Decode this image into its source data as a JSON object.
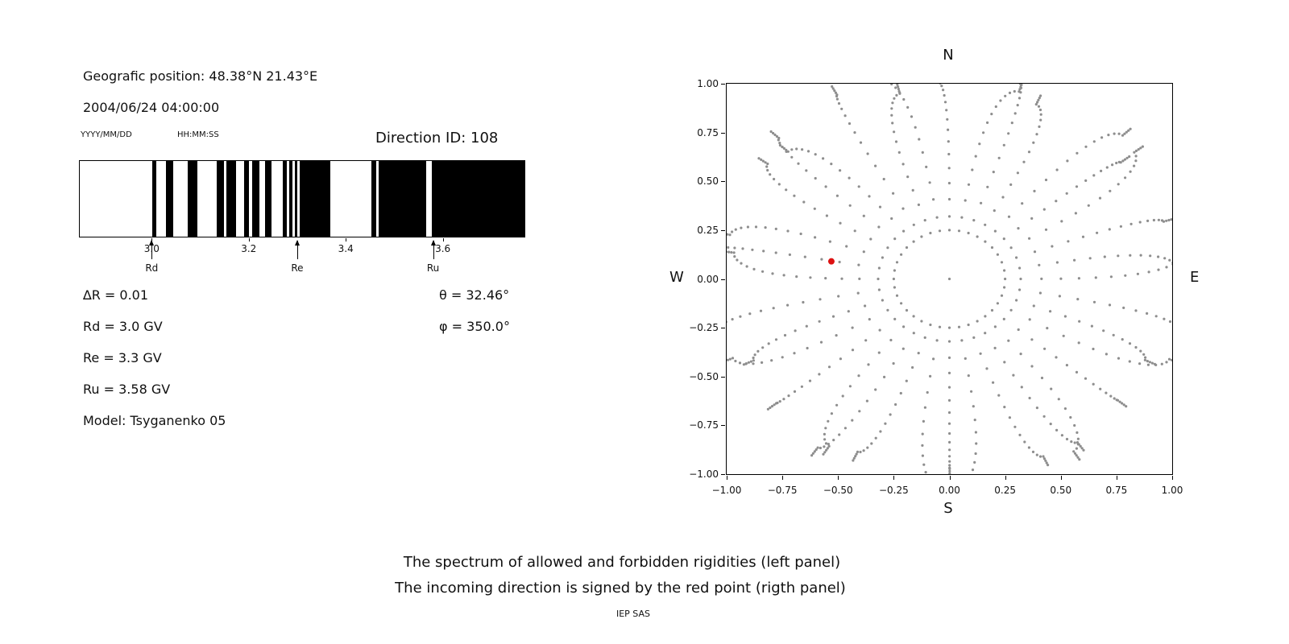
{
  "header": {
    "position": "Geografic position: 48.38°N 21.43°E",
    "datetime": "2004/06/24 04:00:00",
    "date_format_hint": "YYYY/MM/DD",
    "time_format_hint": "HH:MM:SS",
    "direction_id": "Direction ID: 108"
  },
  "stats": {
    "delta_r": "∆R = 0.01",
    "rd": "Rd = 3.0 GV",
    "re": "Re = 3.3 GV",
    "ru": "Ru = 3.58 GV",
    "model": "Model: Tsyganenko 05",
    "theta": "θ = 32.46°",
    "phi": "φ = 350.0°"
  },
  "captions": {
    "line1": "The spectrum of allowed and forbidden rigidities (left panel)",
    "line2": "The incoming direction is signed by the red point (rigth panel)",
    "credit": "IEP SAS"
  },
  "chart_data": [
    {
      "type": "bar",
      "name": "rigidity-spectrum",
      "description": "Barcode-style spectrum: black bands = allowed rigidities, white = forbidden",
      "x_unit": "GV",
      "x_range": [
        2.85,
        3.77
      ],
      "ticks": [
        3.0,
        3.2,
        3.4,
        3.6
      ],
      "tick_labels": [
        "3.0",
        "3.2",
        "3.4",
        "3.6"
      ],
      "delta_r": 0.01,
      "allowed_color": "#000000",
      "forbidden_color": "#ffffff",
      "allowed_bands": [
        [
          3.0,
          3.008
        ],
        [
          3.028,
          3.043
        ],
        [
          3.074,
          3.094
        ],
        [
          3.134,
          3.148
        ],
        [
          3.154,
          3.174
        ],
        [
          3.19,
          3.2
        ],
        [
          3.207,
          3.222
        ],
        [
          3.234,
          3.247
        ],
        [
          3.27,
          3.278
        ],
        [
          3.283,
          3.29
        ],
        [
          3.295,
          3.3
        ],
        [
          3.305,
          3.368
        ],
        [
          3.453,
          3.464
        ],
        [
          3.469,
          3.567
        ],
        [
          3.579,
          3.77
        ]
      ],
      "cutoffs": [
        {
          "label": "Rd",
          "value": 3.0
        },
        {
          "label": "Re",
          "value": 3.3
        },
        {
          "label": "Ru",
          "value": 3.58
        }
      ]
    },
    {
      "type": "scatter",
      "name": "incoming-direction-map",
      "description": "Radial spokes of gray dots (asymptotic directions); red point marks incoming direction",
      "xlim": [
        -1,
        1
      ],
      "ylim": [
        -1,
        1
      ],
      "x_ticks": [
        -1,
        -0.75,
        -0.5,
        -0.25,
        0,
        0.25,
        0.5,
        0.75,
        1
      ],
      "x_tick_labels": [
        "−1.00",
        "−0.75",
        "−0.50",
        "−0.25",
        "0.00",
        "0.25",
        "0.50",
        "0.75",
        "1.00"
      ],
      "y_ticks": [
        1,
        0.75,
        0.5,
        0.25,
        0,
        -0.25,
        -0.5,
        -0.75,
        -1
      ],
      "y_tick_labels": [
        "1.00",
        "0.75",
        "0.50",
        "0.25",
        "0.00",
        "−0.25",
        "−0.50",
        "−0.75",
        "−1.00"
      ],
      "compass": {
        "top": "N",
        "bottom": "S",
        "left": "W",
        "right": "E"
      },
      "dot_color": "#8e8e8e",
      "red_point": {
        "x": -0.53,
        "y": 0.09,
        "color": "#dd1111"
      },
      "pattern": {
        "spoke_count": 36,
        "spoke_angle_step_deg": 10,
        "spoke_r_start": 0.32,
        "spoke_r_end": 1.02,
        "dots_per_spoke": 15,
        "inner_ring_radius": 0.25,
        "center_dot": true
      }
    }
  ]
}
